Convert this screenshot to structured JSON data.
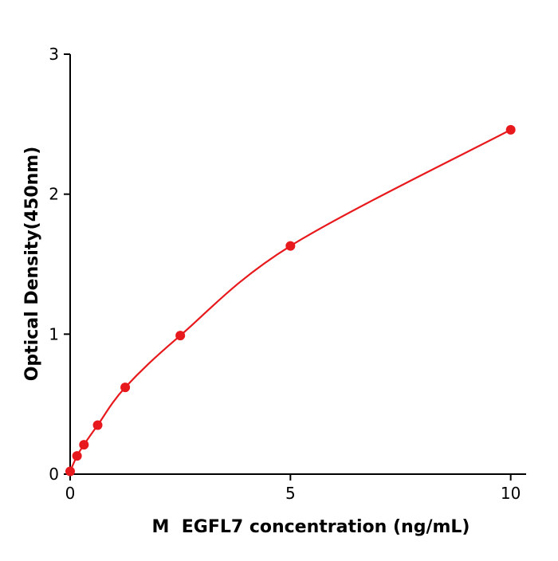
{
  "chart_data": {
    "type": "scatter",
    "title": "",
    "xlabel": "M  EGFL7 concentration (ng/mL)",
    "ylabel": "Optical Density(450nm)",
    "x": [
      0,
      0.156,
      0.313,
      0.625,
      1.25,
      2.5,
      5,
      10
    ],
    "y": [
      0.02,
      0.13,
      0.21,
      0.35,
      0.62,
      0.99,
      1.63,
      2.46
    ],
    "xlim": [
      0,
      10.35
    ],
    "ylim": [
      0,
      3
    ],
    "xticks": [
      0,
      5,
      10
    ],
    "yticks": [
      0,
      1,
      2,
      3
    ],
    "grid": false,
    "legend": null,
    "line_color": "#e8191c",
    "marker_color": "#e8191c",
    "axis_color": "#000000",
    "background_color": "#ffffff"
  }
}
